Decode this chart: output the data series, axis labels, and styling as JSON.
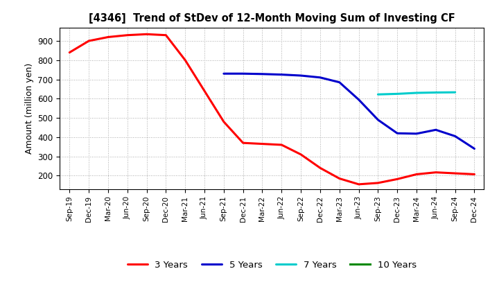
{
  "title": "[4346]  Trend of StDev of 12-Month Moving Sum of Investing CF",
  "ylabel": "Amount (million yen)",
  "background_color": "#ffffff",
  "grid_color": "#aaaaaa",
  "ylim": [
    130,
    970
  ],
  "yticks": [
    200,
    300,
    400,
    500,
    600,
    700,
    800,
    900
  ],
  "x_labels": [
    "Sep-19",
    "Dec-19",
    "Mar-20",
    "Jun-20",
    "Sep-20",
    "Dec-20",
    "Mar-21",
    "Jun-21",
    "Sep-21",
    "Dec-21",
    "Mar-22",
    "Jun-22",
    "Sep-22",
    "Dec-22",
    "Mar-23",
    "Jun-23",
    "Sep-23",
    "Dec-23",
    "Mar-24",
    "Jun-24",
    "Sep-24",
    "Dec-24"
  ],
  "series": {
    "3years": {
      "color": "#ff0000",
      "label": "3 Years",
      "linewidth": 2.2,
      "x": [
        0,
        1,
        2,
        3,
        4,
        5,
        6,
        7,
        8,
        9,
        10,
        11,
        12,
        13,
        14,
        15,
        16,
        17,
        18,
        19,
        20,
        21
      ],
      "y": [
        840,
        900,
        920,
        930,
        935,
        930,
        800,
        640,
        480,
        370,
        365,
        360,
        310,
        240,
        185,
        155,
        162,
        182,
        207,
        217,
        212,
        207
      ]
    },
    "5years": {
      "color": "#0000cc",
      "label": "5 Years",
      "linewidth": 2.2,
      "x": [
        8,
        9,
        10,
        11,
        12,
        13,
        14,
        15,
        16,
        17,
        18,
        19,
        20,
        21
      ],
      "y": [
        730,
        730,
        728,
        725,
        720,
        710,
        685,
        595,
        490,
        420,
        418,
        438,
        405,
        340
      ]
    },
    "7years": {
      "color": "#00cccc",
      "label": "7 Years",
      "linewidth": 2.2,
      "x": [
        16,
        17,
        18,
        19,
        20
      ],
      "y": [
        622,
        625,
        630,
        632,
        633
      ]
    },
    "10years": {
      "color": "#008800",
      "label": "10 Years",
      "linewidth": 2.2,
      "x": [],
      "y": []
    }
  }
}
